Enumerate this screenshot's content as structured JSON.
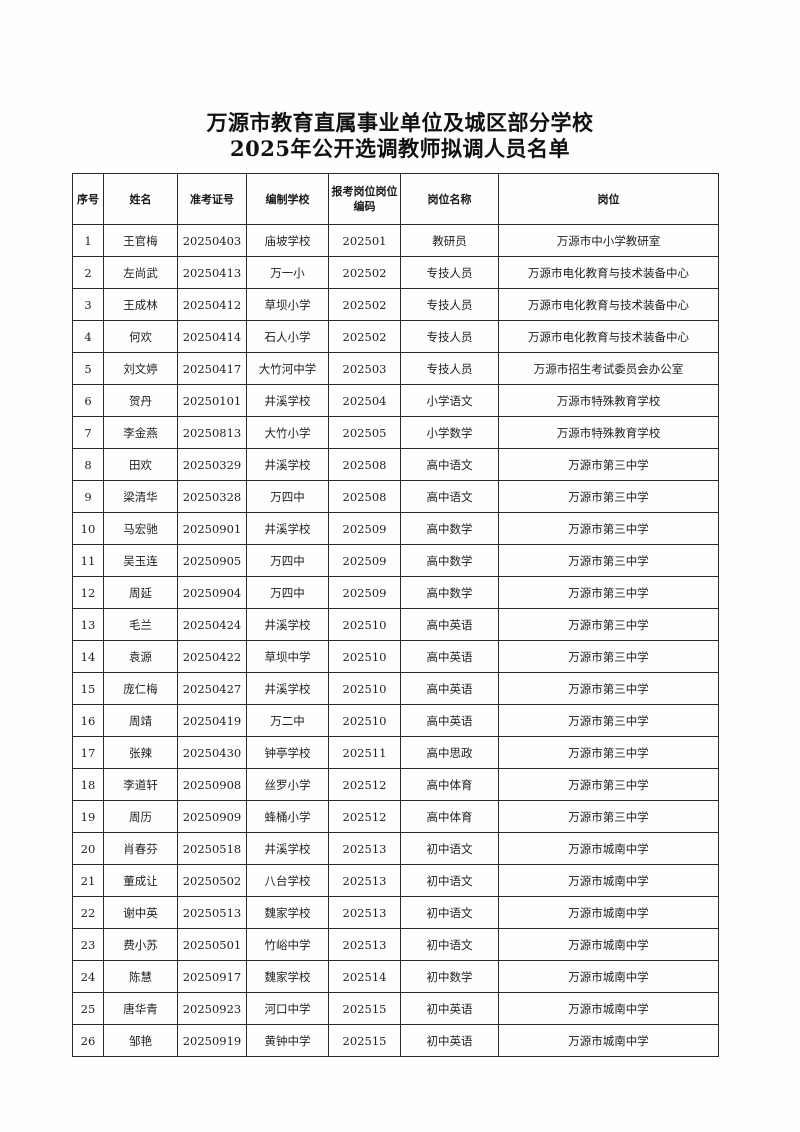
{
  "page": {
    "title_line1": "万源市教育直属事业单位及城区部分学校",
    "title_line2": "2025年公开选调教师拟调人员名单"
  },
  "colors": {
    "background": "#fefefe",
    "text": "#1a1a1a",
    "border": "#2a2a2a"
  },
  "table": {
    "headers": {
      "no": "序号",
      "name": "姓名",
      "exam_id": "准考证号",
      "school": "编制学校",
      "code": "报考岗位岗位编码",
      "position": "岗位名称",
      "unit": "岗位"
    },
    "rows": [
      {
        "no": "1",
        "name": "王官梅",
        "exam_id": "20250403",
        "school": "庙坡学校",
        "code": "202501",
        "position": "教研员",
        "unit": "万源市中小学教研室"
      },
      {
        "no": "2",
        "name": "左尚武",
        "exam_id": "20250413",
        "school": "万一小",
        "code": "202502",
        "position": "专技人员",
        "unit": "万源市电化教育与技术装备中心"
      },
      {
        "no": "3",
        "name": "王成林",
        "exam_id": "20250412",
        "school": "草坝小学",
        "code": "202502",
        "position": "专技人员",
        "unit": "万源市电化教育与技术装备中心"
      },
      {
        "no": "4",
        "name": "何欢",
        "exam_id": "20250414",
        "school": "石人小学",
        "code": "202502",
        "position": "专技人员",
        "unit": "万源市电化教育与技术装备中心"
      },
      {
        "no": "5",
        "name": "刘文婷",
        "exam_id": "20250417",
        "school": "大竹河中学",
        "code": "202503",
        "position": "专技人员",
        "unit": "万源市招生考试委员会办公室"
      },
      {
        "no": "6",
        "name": "贺丹",
        "exam_id": "20250101",
        "school": "井溪学校",
        "code": "202504",
        "position": "小学语文",
        "unit": "万源市特殊教育学校"
      },
      {
        "no": "7",
        "name": "李金燕",
        "exam_id": "20250813",
        "school": "大竹小学",
        "code": "202505",
        "position": "小学数学",
        "unit": "万源市特殊教育学校"
      },
      {
        "no": "8",
        "name": "田欢",
        "exam_id": "20250329",
        "school": "井溪学校",
        "code": "202508",
        "position": "高中语文",
        "unit": "万源市第三中学"
      },
      {
        "no": "9",
        "name": "梁清华",
        "exam_id": "20250328",
        "school": "万四中",
        "code": "202508",
        "position": "高中语文",
        "unit": "万源市第三中学"
      },
      {
        "no": "10",
        "name": "马宏驰",
        "exam_id": "20250901",
        "school": "井溪学校",
        "code": "202509",
        "position": "高中数学",
        "unit": "万源市第三中学"
      },
      {
        "no": "11",
        "name": "吴玉连",
        "exam_id": "20250905",
        "school": "万四中",
        "code": "202509",
        "position": "高中数学",
        "unit": "万源市第三中学"
      },
      {
        "no": "12",
        "name": "周延",
        "exam_id": "20250904",
        "school": "万四中",
        "code": "202509",
        "position": "高中数学",
        "unit": "万源市第三中学"
      },
      {
        "no": "13",
        "name": "毛兰",
        "exam_id": "20250424",
        "school": "井溪学校",
        "code": "202510",
        "position": "高中英语",
        "unit": "万源市第三中学"
      },
      {
        "no": "14",
        "name": "袁源",
        "exam_id": "20250422",
        "school": "草坝中学",
        "code": "202510",
        "position": "高中英语",
        "unit": "万源市第三中学"
      },
      {
        "no": "15",
        "name": "庞仁梅",
        "exam_id": "20250427",
        "school": "井溪学校",
        "code": "202510",
        "position": "高中英语",
        "unit": "万源市第三中学"
      },
      {
        "no": "16",
        "name": "周靖",
        "exam_id": "20250419",
        "school": "万二中",
        "code": "202510",
        "position": "高中英语",
        "unit": "万源市第三中学"
      },
      {
        "no": "17",
        "name": "张辣",
        "exam_id": "20250430",
        "school": "钟亭学校",
        "code": "202511",
        "position": "高中思政",
        "unit": "万源市第三中学"
      },
      {
        "no": "18",
        "name": "李道轩",
        "exam_id": "20250908",
        "school": "丝罗小学",
        "code": "202512",
        "position": "高中体育",
        "unit": "万源市第三中学"
      },
      {
        "no": "19",
        "name": "周历",
        "exam_id": "20250909",
        "school": "蜂桶小学",
        "code": "202512",
        "position": "高中体育",
        "unit": "万源市第三中学"
      },
      {
        "no": "20",
        "name": "肖春芬",
        "exam_id": "20250518",
        "school": "井溪学校",
        "code": "202513",
        "position": "初中语文",
        "unit": "万源市城南中学"
      },
      {
        "no": "21",
        "name": "董成让",
        "exam_id": "20250502",
        "school": "八台学校",
        "code": "202513",
        "position": "初中语文",
        "unit": "万源市城南中学"
      },
      {
        "no": "22",
        "name": "谢中英",
        "exam_id": "20250513",
        "school": "魏家学校",
        "code": "202513",
        "position": "初中语文",
        "unit": "万源市城南中学"
      },
      {
        "no": "23",
        "name": "费小苏",
        "exam_id": "20250501",
        "school": "竹峪中学",
        "code": "202513",
        "position": "初中语文",
        "unit": "万源市城南中学"
      },
      {
        "no": "24",
        "name": "陈慧",
        "exam_id": "20250917",
        "school": "魏家学校",
        "code": "202514",
        "position": "初中数学",
        "unit": "万源市城南中学"
      },
      {
        "no": "25",
        "name": "唐华青",
        "exam_id": "20250923",
        "school": "河口中学",
        "code": "202515",
        "position": "初中英语",
        "unit": "万源市城南中学"
      },
      {
        "no": "26",
        "name": "邹艳",
        "exam_id": "20250919",
        "school": "黄钟中学",
        "code": "202515",
        "position": "初中英语",
        "unit": "万源市城南中学"
      }
    ]
  }
}
